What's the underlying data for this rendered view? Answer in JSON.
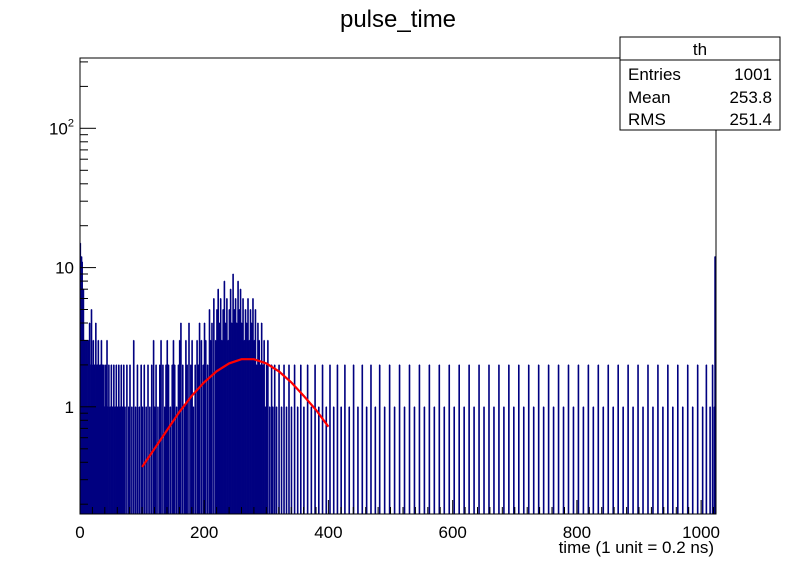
{
  "chart_data": {
    "type": "histogram",
    "title": "pulse_time",
    "xlabel": "time (1 unit = 0.2 ns)",
    "ylabel": "",
    "xlim": [
      0,
      1024
    ],
    "ylim": [
      0.17,
      320
    ],
    "log_y": true,
    "grid": false,
    "x_ticks": [
      0,
      200,
      400,
      600,
      800,
      1000
    ],
    "y_ticks": [
      {
        "value": 1,
        "base": "1",
        "exp": ""
      },
      {
        "value": 10,
        "base": "10",
        "exp": ""
      },
      {
        "value": 100,
        "base": "10",
        "exp": "2"
      }
    ],
    "series": [
      {
        "kind": "histogram",
        "color": "#000080",
        "bins": [
          [
            0,
            15
          ],
          [
            1,
            9
          ],
          [
            2,
            12
          ],
          [
            3,
            11
          ],
          [
            4,
            4
          ],
          [
            5,
            7
          ],
          [
            6,
            3
          ],
          [
            7,
            3
          ],
          [
            8,
            2
          ],
          [
            9,
            3
          ],
          [
            10,
            2
          ],
          [
            11,
            3
          ],
          [
            12,
            1
          ],
          [
            13,
            3
          ],
          [
            14,
            2
          ],
          [
            15,
            4
          ],
          [
            16,
            1
          ],
          [
            17,
            2
          ],
          [
            18,
            5
          ],
          [
            19,
            1
          ],
          [
            20,
            2
          ],
          [
            21,
            3
          ],
          [
            22,
            1
          ],
          [
            23,
            2
          ],
          [
            24,
            1
          ],
          [
            25,
            4
          ],
          [
            26,
            1
          ],
          [
            27,
            2
          ],
          [
            28,
            1
          ],
          [
            29,
            3
          ],
          [
            30,
            2
          ],
          [
            31,
            1
          ],
          [
            32,
            2
          ],
          [
            33,
            1
          ],
          [
            34,
            3
          ],
          [
            35,
            1
          ],
          [
            36,
            2
          ],
          [
            37,
            1
          ],
          [
            38,
            2
          ],
          [
            39,
            1
          ],
          [
            40,
            1
          ],
          [
            41,
            2
          ],
          [
            42,
            1
          ],
          [
            43,
            3
          ],
          [
            44,
            1
          ],
          [
            46,
            2
          ],
          [
            48,
            1
          ],
          [
            50,
            2
          ],
          [
            52,
            1
          ],
          [
            54,
            2
          ],
          [
            56,
            1
          ],
          [
            58,
            2
          ],
          [
            60,
            1
          ],
          [
            62,
            2
          ],
          [
            64,
            1
          ],
          [
            66,
            2
          ],
          [
            68,
            1
          ],
          [
            70,
            2
          ],
          [
            72,
            1
          ],
          [
            75,
            2
          ],
          [
            78,
            1
          ],
          [
            80,
            2
          ],
          [
            83,
            1
          ],
          [
            86,
            3
          ],
          [
            89,
            1
          ],
          [
            92,
            2
          ],
          [
            95,
            1
          ],
          [
            98,
            2
          ],
          [
            100,
            1
          ],
          [
            103,
            2
          ],
          [
            106,
            1
          ],
          [
            109,
            2
          ],
          [
            112,
            1
          ],
          [
            115,
            2
          ],
          [
            118,
            3
          ],
          [
            120,
            1
          ],
          [
            122,
            2
          ],
          [
            125,
            1
          ],
          [
            128,
            2
          ],
          [
            130,
            3
          ],
          [
            133,
            2
          ],
          [
            136,
            1
          ],
          [
            138,
            2
          ],
          [
            140,
            3
          ],
          [
            142,
            2
          ],
          [
            145,
            1
          ],
          [
            148,
            2
          ],
          [
            150,
            3
          ],
          [
            152,
            2
          ],
          [
            155,
            1
          ],
          [
            158,
            2
          ],
          [
            160,
            3
          ],
          [
            162,
            4
          ],
          [
            165,
            2
          ],
          [
            168,
            1
          ],
          [
            170,
            3
          ],
          [
            172,
            2
          ],
          [
            175,
            4
          ],
          [
            178,
            2
          ],
          [
            180,
            3
          ],
          [
            182,
            1
          ],
          [
            185,
            2
          ],
          [
            188,
            3
          ],
          [
            190,
            2
          ],
          [
            192,
            4
          ],
          [
            195,
            3
          ],
          [
            198,
            2
          ],
          [
            200,
            4
          ],
          [
            202,
            3
          ],
          [
            205,
            2
          ],
          [
            208,
            5
          ],
          [
            210,
            3
          ],
          [
            212,
            4
          ],
          [
            215,
            6
          ],
          [
            218,
            3
          ],
          [
            220,
            5
          ],
          [
            222,
            7
          ],
          [
            224,
            4
          ],
          [
            226,
            6
          ],
          [
            228,
            3
          ],
          [
            230,
            5
          ],
          [
            232,
            8
          ],
          [
            234,
            4
          ],
          [
            236,
            6
          ],
          [
            238,
            3
          ],
          [
            240,
            5
          ],
          [
            242,
            7
          ],
          [
            244,
            4
          ],
          [
            246,
            9
          ],
          [
            248,
            5
          ],
          [
            250,
            6
          ],
          [
            252,
            4
          ],
          [
            254,
            8
          ],
          [
            256,
            5
          ],
          [
            258,
            7
          ],
          [
            260,
            4
          ],
          [
            262,
            6
          ],
          [
            264,
            3
          ],
          [
            266,
            5
          ],
          [
            268,
            4
          ],
          [
            270,
            6
          ],
          [
            272,
            3
          ],
          [
            274,
            5
          ],
          [
            276,
            4
          ],
          [
            278,
            6
          ],
          [
            280,
            3
          ],
          [
            282,
            5
          ],
          [
            284,
            2
          ],
          [
            286,
            4
          ],
          [
            288,
            3
          ],
          [
            290,
            2
          ],
          [
            292,
            4
          ],
          [
            294,
            2
          ],
          [
            296,
            3
          ],
          [
            298,
            1
          ],
          [
            300,
            2
          ],
          [
            302,
            3
          ],
          [
            305,
            1
          ],
          [
            308,
            2
          ],
          [
            310,
            1
          ],
          [
            313,
            2
          ],
          [
            316,
            1
          ],
          [
            320,
            2
          ],
          [
            324,
            1
          ],
          [
            328,
            2
          ],
          [
            332,
            1
          ],
          [
            336,
            2
          ],
          [
            340,
            1
          ],
          [
            345,
            2
          ],
          [
            350,
            1
          ],
          [
            355,
            2
          ],
          [
            360,
            1
          ],
          [
            366,
            2
          ],
          [
            372,
            1
          ],
          [
            378,
            2
          ],
          [
            384,
            1
          ],
          [
            390,
            2
          ],
          [
            396,
            1
          ],
          [
            402,
            2
          ],
          [
            408,
            1
          ],
          [
            414,
            2
          ],
          [
            420,
            1
          ],
          [
            426,
            2
          ],
          [
            433,
            1
          ],
          [
            440,
            2
          ],
          [
            447,
            1
          ],
          [
            454,
            2
          ],
          [
            461,
            1
          ],
          [
            468,
            2
          ],
          [
            475,
            1
          ],
          [
            482,
            2
          ],
          [
            490,
            1
          ],
          [
            498,
            2
          ],
          [
            506,
            1
          ],
          [
            514,
            2
          ],
          [
            522,
            1
          ],
          [
            530,
            2
          ],
          [
            538,
            1
          ],
          [
            546,
            2
          ],
          [
            554,
            1
          ],
          [
            562,
            2
          ],
          [
            570,
            1
          ],
          [
            578,
            2
          ],
          [
            586,
            1
          ],
          [
            594,
            2
          ],
          [
            602,
            1
          ],
          [
            610,
            2
          ],
          [
            618,
            1
          ],
          [
            626,
            2
          ],
          [
            634,
            1
          ],
          [
            642,
            2
          ],
          [
            650,
            1
          ],
          [
            658,
            2
          ],
          [
            666,
            1
          ],
          [
            674,
            2
          ],
          [
            682,
            1
          ],
          [
            690,
            2
          ],
          [
            698,
            1
          ],
          [
            706,
            2
          ],
          [
            714,
            1
          ],
          [
            722,
            2
          ],
          [
            730,
            1
          ],
          [
            738,
            2
          ],
          [
            746,
            1
          ],
          [
            754,
            2
          ],
          [
            762,
            1
          ],
          [
            770,
            2
          ],
          [
            778,
            1
          ],
          [
            786,
            2
          ],
          [
            794,
            1
          ],
          [
            802,
            2
          ],
          [
            810,
            1
          ],
          [
            818,
            2
          ],
          [
            826,
            1
          ],
          [
            834,
            2
          ],
          [
            842,
            1
          ],
          [
            850,
            2
          ],
          [
            858,
            1
          ],
          [
            866,
            2
          ],
          [
            874,
            1
          ],
          [
            882,
            2
          ],
          [
            890,
            1
          ],
          [
            898,
            2
          ],
          [
            906,
            1
          ],
          [
            914,
            2
          ],
          [
            922,
            1
          ],
          [
            930,
            2
          ],
          [
            938,
            1
          ],
          [
            946,
            2
          ],
          [
            954,
            1
          ],
          [
            962,
            2
          ],
          [
            970,
            1
          ],
          [
            978,
            2
          ],
          [
            986,
            1
          ],
          [
            994,
            2
          ],
          [
            1002,
            1
          ],
          [
            1008,
            2
          ],
          [
            1014,
            1
          ],
          [
            1018,
            2
          ],
          [
            1021,
            1
          ],
          [
            1022,
            12
          ],
          [
            1023,
            2
          ]
        ]
      },
      {
        "kind": "fit",
        "color": "#ff0000",
        "x": [
          100,
          120,
          140,
          160,
          180,
          200,
          220,
          240,
          260,
          280,
          300,
          320,
          340,
          360,
          380,
          400
        ],
        "y": [
          0.37,
          0.5,
          0.68,
          0.92,
          1.2,
          1.5,
          1.8,
          2.05,
          2.2,
          2.2,
          2.05,
          1.8,
          1.5,
          1.2,
          0.95,
          0.72
        ]
      }
    ],
    "stats_box": {
      "title": "th",
      "rows": [
        {
          "label": "Entries",
          "value": "1001"
        },
        {
          "label": "Mean",
          "value": "253.8"
        },
        {
          "label": "RMS",
          "value": "251.4"
        }
      ]
    }
  }
}
